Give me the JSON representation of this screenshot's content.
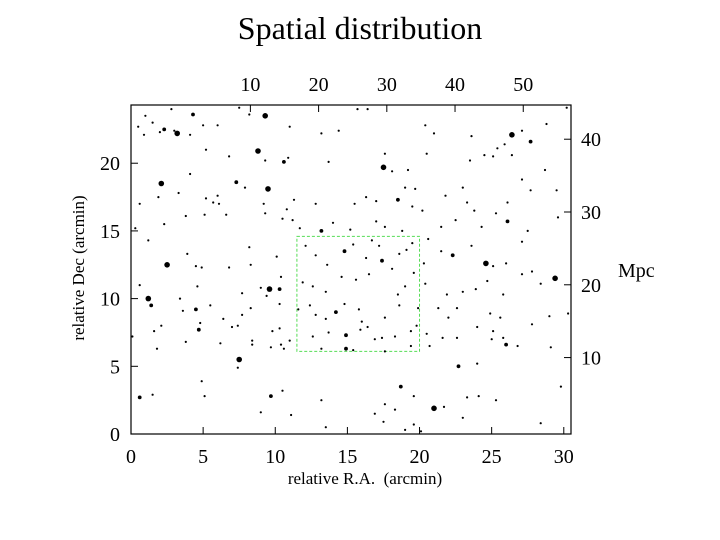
{
  "chart_data": {
    "type": "scatter",
    "title": "Spatial distribution",
    "xlabel": "relative R.A.  (arcmin)",
    "ylabel": "relative Dec (arcmin)",
    "y2label": "Mpc",
    "xlim": [
      0,
      30.5
    ],
    "ylim": [
      0,
      24.3
    ],
    "x_ticks": [
      0,
      5,
      10,
      15,
      20,
      25,
      30
    ],
    "y_ticks": [
      0,
      5,
      10,
      15,
      20
    ],
    "x2lim": [
      -7.5,
      57
    ],
    "x2_ticks": [
      10,
      20,
      30,
      40,
      50
    ],
    "y2lim": [
      -0.5,
      44.7
    ],
    "y2_ticks": [
      10,
      20,
      30,
      40
    ],
    "highlight_box": {
      "x": [
        11.5,
        20.0
      ],
      "y": [
        6.1,
        14.6
      ],
      "color": "#55dd55"
    },
    "grid": false,
    "points": [
      [
        1.0,
        23.5,
        1
      ],
      [
        1.5,
        23.0,
        1
      ],
      [
        2.3,
        22.5,
        2
      ],
      [
        3.2,
        22.2,
        3
      ],
      [
        2.0,
        22.3,
        1
      ],
      [
        4.1,
        22.1,
        1
      ],
      [
        0.5,
        22.7,
        1
      ],
      [
        2.8,
        24.0,
        1
      ],
      [
        0.9,
        22.1,
        1
      ],
      [
        4.3,
        23.6,
        2
      ],
      [
        5.0,
        22.8,
        1
      ],
      [
        6.0,
        22.8,
        1
      ],
      [
        7.5,
        24.1,
        1
      ],
      [
        8.2,
        23.6,
        1
      ],
      [
        9.3,
        23.5,
        3
      ],
      [
        11.0,
        22.7,
        1
      ],
      [
        13.2,
        22.2,
        1
      ],
      [
        14.4,
        22.4,
        1
      ],
      [
        15.7,
        24.0,
        1
      ],
      [
        16.4,
        24.0,
        1
      ],
      [
        21.0,
        22.2,
        1
      ],
      [
        20.4,
        22.8,
        1
      ],
      [
        23.6,
        22.0,
        1
      ],
      [
        25.9,
        21.4,
        1
      ],
      [
        26.4,
        22.1,
        3
      ],
      [
        27.1,
        22.4,
        1
      ],
      [
        27.7,
        21.6,
        2
      ],
      [
        28.8,
        22.9,
        1
      ],
      [
        30.2,
        24.1,
        1
      ],
      [
        5.2,
        21.0,
        1
      ],
      [
        6.8,
        20.5,
        1
      ],
      [
        8.8,
        20.9,
        3
      ],
      [
        9.3,
        20.2,
        1
      ],
      [
        10.6,
        20.1,
        2
      ],
      [
        10.9,
        20.4,
        1
      ],
      [
        13.7,
        20.1,
        1
      ],
      [
        17.6,
        20.7,
        1
      ],
      [
        17.5,
        19.7,
        3
      ],
      [
        18.1,
        19.4,
        1
      ],
      [
        19.2,
        19.5,
        1
      ],
      [
        20.5,
        20.7,
        1
      ],
      [
        23.5,
        20.2,
        1
      ],
      [
        24.5,
        20.6,
        1
      ],
      [
        25.1,
        20.5,
        1
      ],
      [
        25.4,
        21.1,
        1
      ],
      [
        26.4,
        20.6,
        1
      ],
      [
        27.1,
        18.8,
        1
      ],
      [
        28.7,
        19.5,
        1
      ],
      [
        29.5,
        18.0,
        1
      ],
      [
        2.1,
        18.5,
        3
      ],
      [
        1.9,
        17.5,
        1
      ],
      [
        3.3,
        17.8,
        1
      ],
      [
        4.1,
        19.2,
        1
      ],
      [
        5.2,
        17.4,
        1
      ],
      [
        6.0,
        17.6,
        1
      ],
      [
        5.7,
        17.1,
        1
      ],
      [
        6.1,
        17.0,
        1
      ],
      [
        7.3,
        18.6,
        2
      ],
      [
        7.9,
        18.2,
        1
      ],
      [
        9.5,
        18.1,
        3
      ],
      [
        9.2,
        17.0,
        1
      ],
      [
        11.3,
        17.3,
        1
      ],
      [
        12.8,
        17.0,
        1
      ],
      [
        15.5,
        17.0,
        1
      ],
      [
        16.3,
        17.5,
        1
      ],
      [
        17.0,
        17.2,
        1
      ],
      [
        18.5,
        17.3,
        2
      ],
      [
        19.0,
        18.2,
        1
      ],
      [
        19.7,
        18.1,
        1
      ],
      [
        19.5,
        16.8,
        1
      ],
      [
        21.8,
        17.6,
        1
      ],
      [
        23.0,
        18.2,
        1
      ],
      [
        23.3,
        17.1,
        1
      ],
      [
        23.8,
        16.5,
        1
      ],
      [
        25.3,
        16.3,
        1
      ],
      [
        26.1,
        17.1,
        1
      ],
      [
        27.7,
        18.0,
        1
      ],
      [
        0.6,
        17.0,
        1
      ],
      [
        0.3,
        15.2,
        1
      ],
      [
        2.3,
        15.5,
        1
      ],
      [
        3.8,
        16.1,
        1
      ],
      [
        5.1,
        16.2,
        1
      ],
      [
        6.6,
        16.2,
        1
      ],
      [
        9.3,
        16.3,
        1
      ],
      [
        10.5,
        15.9,
        1
      ],
      [
        10.8,
        16.6,
        1
      ],
      [
        11.7,
        15.2,
        1
      ],
      [
        11.2,
        15.8,
        1
      ],
      [
        13.2,
        15.0,
        2
      ],
      [
        14.0,
        15.6,
        1
      ],
      [
        15.2,
        15.1,
        1
      ],
      [
        17.0,
        15.7,
        1
      ],
      [
        17.6,
        15.3,
        1
      ],
      [
        18.8,
        15.0,
        1
      ],
      [
        20.2,
        16.5,
        1
      ],
      [
        20.6,
        14.4,
        1
      ],
      [
        21.5,
        15.3,
        1
      ],
      [
        22.5,
        15.8,
        1
      ],
      [
        24.3,
        15.3,
        1
      ],
      [
        26.1,
        15.7,
        2
      ],
      [
        27.5,
        15.0,
        1
      ],
      [
        27.1,
        14.2,
        1
      ],
      [
        29.6,
        16.0,
        1
      ],
      [
        1.2,
        14.3,
        1
      ],
      [
        2.5,
        12.5,
        3
      ],
      [
        4.5,
        12.4,
        1
      ],
      [
        3.9,
        13.3,
        1
      ],
      [
        4.9,
        12.3,
        1
      ],
      [
        6.8,
        12.3,
        1
      ],
      [
        8.3,
        12.5,
        1
      ],
      [
        8.2,
        13.8,
        1
      ],
      [
        10.1,
        13.1,
        1
      ],
      [
        12.1,
        13.9,
        1
      ],
      [
        12.8,
        13.2,
        1
      ],
      [
        13.6,
        12.5,
        1
      ],
      [
        14.8,
        13.5,
        2
      ],
      [
        15.4,
        14.0,
        1
      ],
      [
        16.3,
        13.0,
        1
      ],
      [
        16.7,
        14.3,
        1
      ],
      [
        17.2,
        13.9,
        1
      ],
      [
        17.4,
        12.8,
        2
      ],
      [
        18.1,
        12.2,
        1
      ],
      [
        18.6,
        13.3,
        1
      ],
      [
        19.1,
        13.6,
        1
      ],
      [
        19.5,
        14.1,
        1
      ],
      [
        20.3,
        12.6,
        1
      ],
      [
        21.5,
        13.5,
        1
      ],
      [
        22.3,
        13.2,
        2
      ],
      [
        23.6,
        13.9,
        1
      ],
      [
        24.6,
        12.6,
        3
      ],
      [
        25.1,
        12.4,
        1
      ],
      [
        26.0,
        12.6,
        1
      ],
      [
        29.4,
        11.5,
        3
      ],
      [
        0.6,
        11.0,
        1
      ],
      [
        1.2,
        10.0,
        3
      ],
      [
        1.4,
        9.5,
        2
      ],
      [
        3.4,
        10.0,
        1
      ],
      [
        4.6,
        10.9,
        1
      ],
      [
        5.5,
        9.5,
        1
      ],
      [
        7.7,
        10.4,
        1
      ],
      [
        9.0,
        10.8,
        1
      ],
      [
        9.6,
        10.7,
        3
      ],
      [
        10.3,
        10.7,
        2
      ],
      [
        10.4,
        11.6,
        1
      ],
      [
        11.9,
        11.2,
        1
      ],
      [
        12.6,
        10.9,
        1
      ],
      [
        13.5,
        10.5,
        1
      ],
      [
        14.6,
        11.6,
        1
      ],
      [
        15.6,
        11.4,
        1
      ],
      [
        16.5,
        11.8,
        1
      ],
      [
        18.5,
        10.3,
        1
      ],
      [
        19.0,
        10.9,
        1
      ],
      [
        19.6,
        11.9,
        1
      ],
      [
        20.4,
        11.1,
        1
      ],
      [
        21.9,
        10.3,
        1
      ],
      [
        23.0,
        10.5,
        1
      ],
      [
        23.9,
        10.7,
        1
      ],
      [
        24.7,
        11.3,
        1
      ],
      [
        25.8,
        10.3,
        1
      ],
      [
        27.1,
        11.8,
        1
      ],
      [
        27.8,
        12.0,
        1
      ],
      [
        28.4,
        11.1,
        1
      ],
      [
        3.6,
        9.1,
        1
      ],
      [
        4.5,
        9.2,
        2
      ],
      [
        4.8,
        8.2,
        1
      ],
      [
        6.4,
        8.5,
        1
      ],
      [
        7.7,
        8.8,
        1
      ],
      [
        8.3,
        9.3,
        1
      ],
      [
        9.4,
        10.2,
        1
      ],
      [
        10.3,
        9.6,
        1
      ],
      [
        11.6,
        9.2,
        1
      ],
      [
        12.4,
        9.5,
        1
      ],
      [
        12.8,
        8.8,
        1
      ],
      [
        13.5,
        8.5,
        1
      ],
      [
        14.2,
        9.0,
        2
      ],
      [
        14.8,
        9.6,
        1
      ],
      [
        15.8,
        9.2,
        1
      ],
      [
        16.0,
        8.3,
        1
      ],
      [
        17.6,
        8.6,
        1
      ],
      [
        18.6,
        9.5,
        1
      ],
      [
        19.9,
        9.3,
        1
      ],
      [
        21.3,
        9.3,
        1
      ],
      [
        22.0,
        8.6,
        1
      ],
      [
        22.6,
        9.3,
        1
      ],
      [
        24.9,
        8.9,
        1
      ],
      [
        25.6,
        8.6,
        1
      ],
      [
        29.0,
        8.7,
        1
      ],
      [
        30.3,
        8.9,
        1
      ],
      [
        1.6,
        7.6,
        1
      ],
      [
        2.1,
        8.0,
        1
      ],
      [
        4.7,
        7.7,
        2
      ],
      [
        7.0,
        7.9,
        1
      ],
      [
        7.4,
        8.0,
        1
      ],
      [
        8.4,
        6.9,
        1
      ],
      [
        9.8,
        7.6,
        1
      ],
      [
        10.3,
        7.8,
        1
      ],
      [
        11.0,
        6.9,
        1
      ],
      [
        12.6,
        7.2,
        1
      ],
      [
        13.7,
        7.5,
        1
      ],
      [
        14.9,
        7.3,
        2
      ],
      [
        15.9,
        7.7,
        1
      ],
      [
        16.4,
        7.9,
        1
      ],
      [
        16.9,
        7.0,
        1
      ],
      [
        17.4,
        7.1,
        1
      ],
      [
        18.3,
        7.2,
        1
      ],
      [
        19.4,
        7.6,
        1
      ],
      [
        19.8,
        8.0,
        1
      ],
      [
        20.5,
        7.4,
        1
      ],
      [
        21.6,
        7.1,
        1
      ],
      [
        22.6,
        7.1,
        1
      ],
      [
        24.0,
        7.9,
        1
      ],
      [
        25.1,
        7.6,
        1
      ],
      [
        25.8,
        7.1,
        1
      ],
      [
        26.0,
        6.6,
        2
      ],
      [
        27.8,
        8.1,
        1
      ],
      [
        0.1,
        7.2,
        1
      ],
      [
        1.8,
        6.3,
        1
      ],
      [
        3.8,
        6.8,
        1
      ],
      [
        6.2,
        6.7,
        1
      ],
      [
        7.5,
        5.5,
        3
      ],
      [
        8.4,
        6.6,
        1
      ],
      [
        9.7,
        6.4,
        1
      ],
      [
        10.6,
        6.3,
        1
      ],
      [
        10.4,
        6.6,
        1
      ],
      [
        13.2,
        6.3,
        1
      ],
      [
        14.9,
        6.3,
        2
      ],
      [
        15.4,
        6.2,
        1
      ],
      [
        17.6,
        6.1,
        1
      ],
      [
        19.4,
        6.5,
        1
      ],
      [
        20.7,
        6.5,
        1
      ],
      [
        22.7,
        5.0,
        2
      ],
      [
        24.0,
        5.2,
        1
      ],
      [
        26.8,
        6.5,
        1
      ],
      [
        29.1,
        6.4,
        1
      ],
      [
        7.4,
        4.9,
        1
      ],
      [
        0.6,
        2.7,
        2
      ],
      [
        1.5,
        2.9,
        1
      ],
      [
        4.9,
        3.9,
        1
      ],
      [
        5.1,
        2.8,
        1
      ],
      [
        9.7,
        2.8,
        2
      ],
      [
        10.5,
        3.2,
        1
      ],
      [
        13.2,
        2.5,
        1
      ],
      [
        13.5,
        0.5,
        1
      ],
      [
        16.9,
        1.5,
        1
      ],
      [
        17.6,
        2.2,
        1
      ],
      [
        18.3,
        1.8,
        1
      ],
      [
        18.7,
        3.5,
        2
      ],
      [
        19.6,
        2.8,
        1
      ],
      [
        19.6,
        0.7,
        1
      ],
      [
        21.0,
        1.9,
        3
      ],
      [
        21.7,
        2.0,
        1
      ],
      [
        23.0,
        1.2,
        1
      ],
      [
        23.3,
        2.7,
        1
      ],
      [
        24.1,
        2.8,
        1
      ],
      [
        25.3,
        2.5,
        1
      ],
      [
        28.4,
        0.8,
        1
      ],
      [
        9.0,
        1.6,
        1
      ],
      [
        11.1,
        1.4,
        1
      ],
      [
        17.5,
        0.9,
        1
      ],
      [
        19.0,
        0.3,
        1
      ],
      [
        25.0,
        7.0,
        1
      ],
      [
        3.0,
        22.4,
        1
      ],
      [
        29.8,
        3.5,
        1
      ],
      [
        20.1,
        0.2,
        1
      ]
    ]
  }
}
